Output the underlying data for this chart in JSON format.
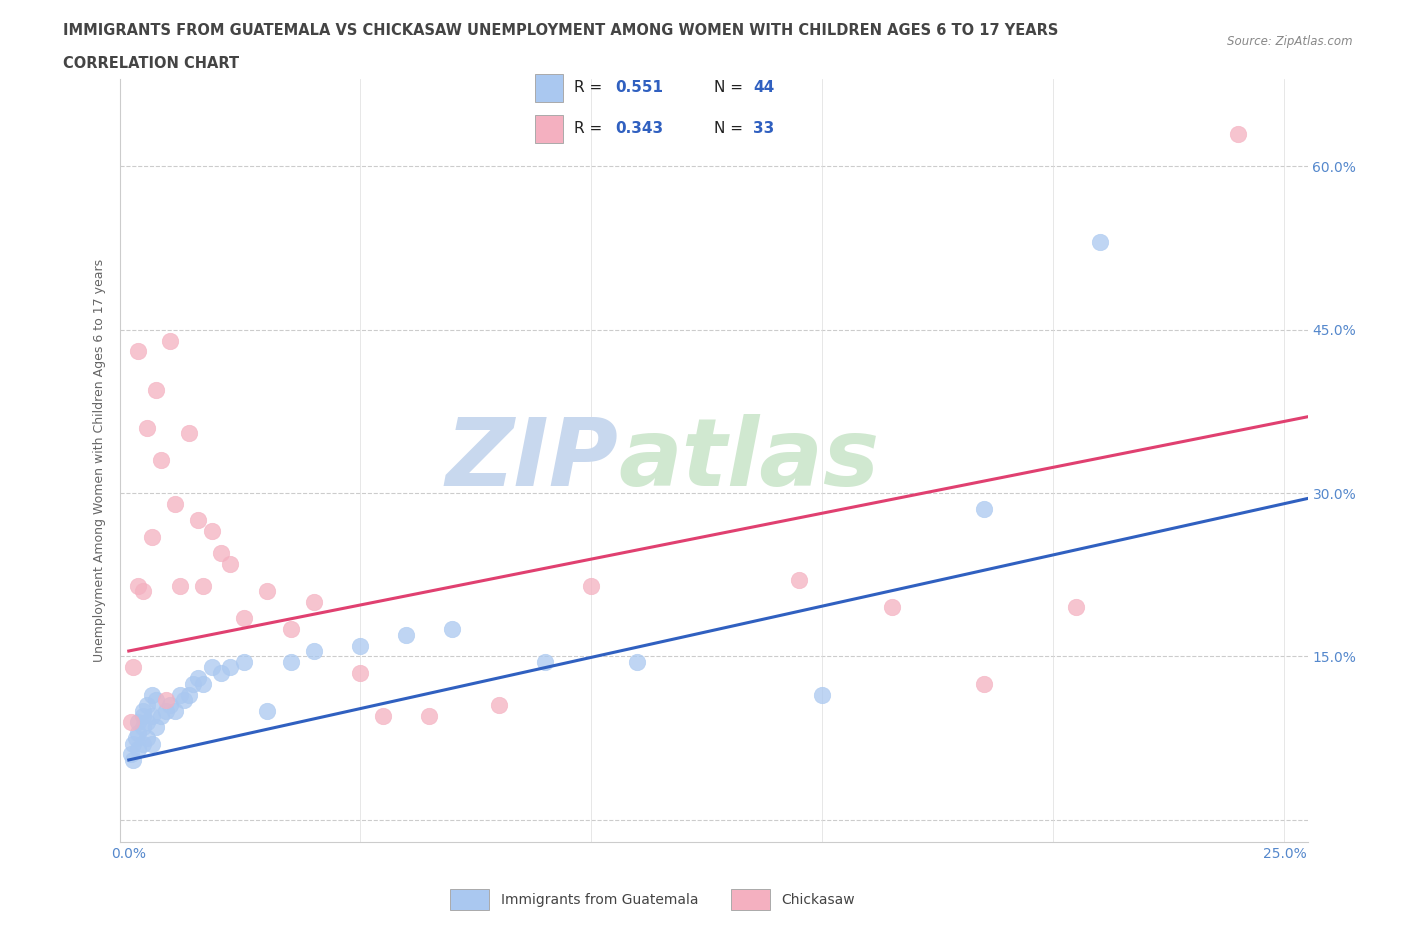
{
  "title_line1": "IMMIGRANTS FROM GUATEMALA VS CHICKASAW UNEMPLOYMENT AMONG WOMEN WITH CHILDREN AGES 6 TO 17 YEARS",
  "title_line2": "CORRELATION CHART",
  "source_text": "Source: ZipAtlas.com",
  "ylabel": "Unemployment Among Women with Children Ages 6 to 17 years",
  "legend_blue_label": "Immigrants from Guatemala",
  "legend_pink_label": "Chickasaw",
  "legend_blue_R": "R =  0.551",
  "legend_blue_N": "N = 44",
  "legend_pink_R": "R =  0.343",
  "legend_pink_N": "N = 33",
  "blue_color": "#aac8f0",
  "pink_color": "#f4b0c0",
  "blue_line_color": "#3060c0",
  "pink_line_color": "#e04070",
  "watermark_ZIP": "ZIP",
  "watermark_atlas": "atlas",
  "xlim": [
    -0.002,
    0.255
  ],
  "ylim": [
    -0.02,
    0.68
  ],
  "yticks": [
    0.0,
    0.15,
    0.3,
    0.45,
    0.6
  ],
  "xticks": [
    0.0,
    0.05,
    0.1,
    0.15,
    0.2,
    0.25
  ],
  "blue_x": [
    0.0005,
    0.001,
    0.001,
    0.0015,
    0.002,
    0.002,
    0.002,
    0.003,
    0.003,
    0.003,
    0.003,
    0.004,
    0.004,
    0.004,
    0.005,
    0.005,
    0.005,
    0.006,
    0.006,
    0.007,
    0.008,
    0.009,
    0.01,
    0.011,
    0.012,
    0.013,
    0.014,
    0.015,
    0.016,
    0.018,
    0.02,
    0.022,
    0.025,
    0.03,
    0.035,
    0.04,
    0.05,
    0.06,
    0.07,
    0.09,
    0.11,
    0.15,
    0.185,
    0.21
  ],
  "blue_y": [
    0.06,
    0.055,
    0.07,
    0.075,
    0.065,
    0.08,
    0.09,
    0.07,
    0.085,
    0.095,
    0.1,
    0.075,
    0.09,
    0.105,
    0.07,
    0.095,
    0.115,
    0.085,
    0.11,
    0.095,
    0.1,
    0.105,
    0.1,
    0.115,
    0.11,
    0.115,
    0.125,
    0.13,
    0.125,
    0.14,
    0.135,
    0.14,
    0.145,
    0.1,
    0.145,
    0.155,
    0.16,
    0.17,
    0.175,
    0.145,
    0.145,
    0.115,
    0.285,
    0.53
  ],
  "pink_x": [
    0.0005,
    0.001,
    0.002,
    0.002,
    0.003,
    0.004,
    0.005,
    0.006,
    0.007,
    0.008,
    0.009,
    0.01,
    0.011,
    0.013,
    0.015,
    0.016,
    0.018,
    0.02,
    0.022,
    0.025,
    0.03,
    0.035,
    0.04,
    0.05,
    0.055,
    0.065,
    0.08,
    0.1,
    0.145,
    0.165,
    0.185,
    0.205,
    0.24
  ],
  "pink_y": [
    0.09,
    0.14,
    0.43,
    0.215,
    0.21,
    0.36,
    0.26,
    0.395,
    0.33,
    0.11,
    0.44,
    0.29,
    0.215,
    0.355,
    0.275,
    0.215,
    0.265,
    0.245,
    0.235,
    0.185,
    0.21,
    0.175,
    0.2,
    0.135,
    0.095,
    0.095,
    0.105,
    0.215,
    0.22,
    0.195,
    0.125,
    0.195,
    0.63
  ],
  "blue_trend_x": [
    0.0,
    0.255
  ],
  "blue_trend_y": [
    0.055,
    0.295
  ],
  "pink_trend_x": [
    0.0,
    0.255
  ],
  "pink_trend_y": [
    0.155,
    0.37
  ]
}
